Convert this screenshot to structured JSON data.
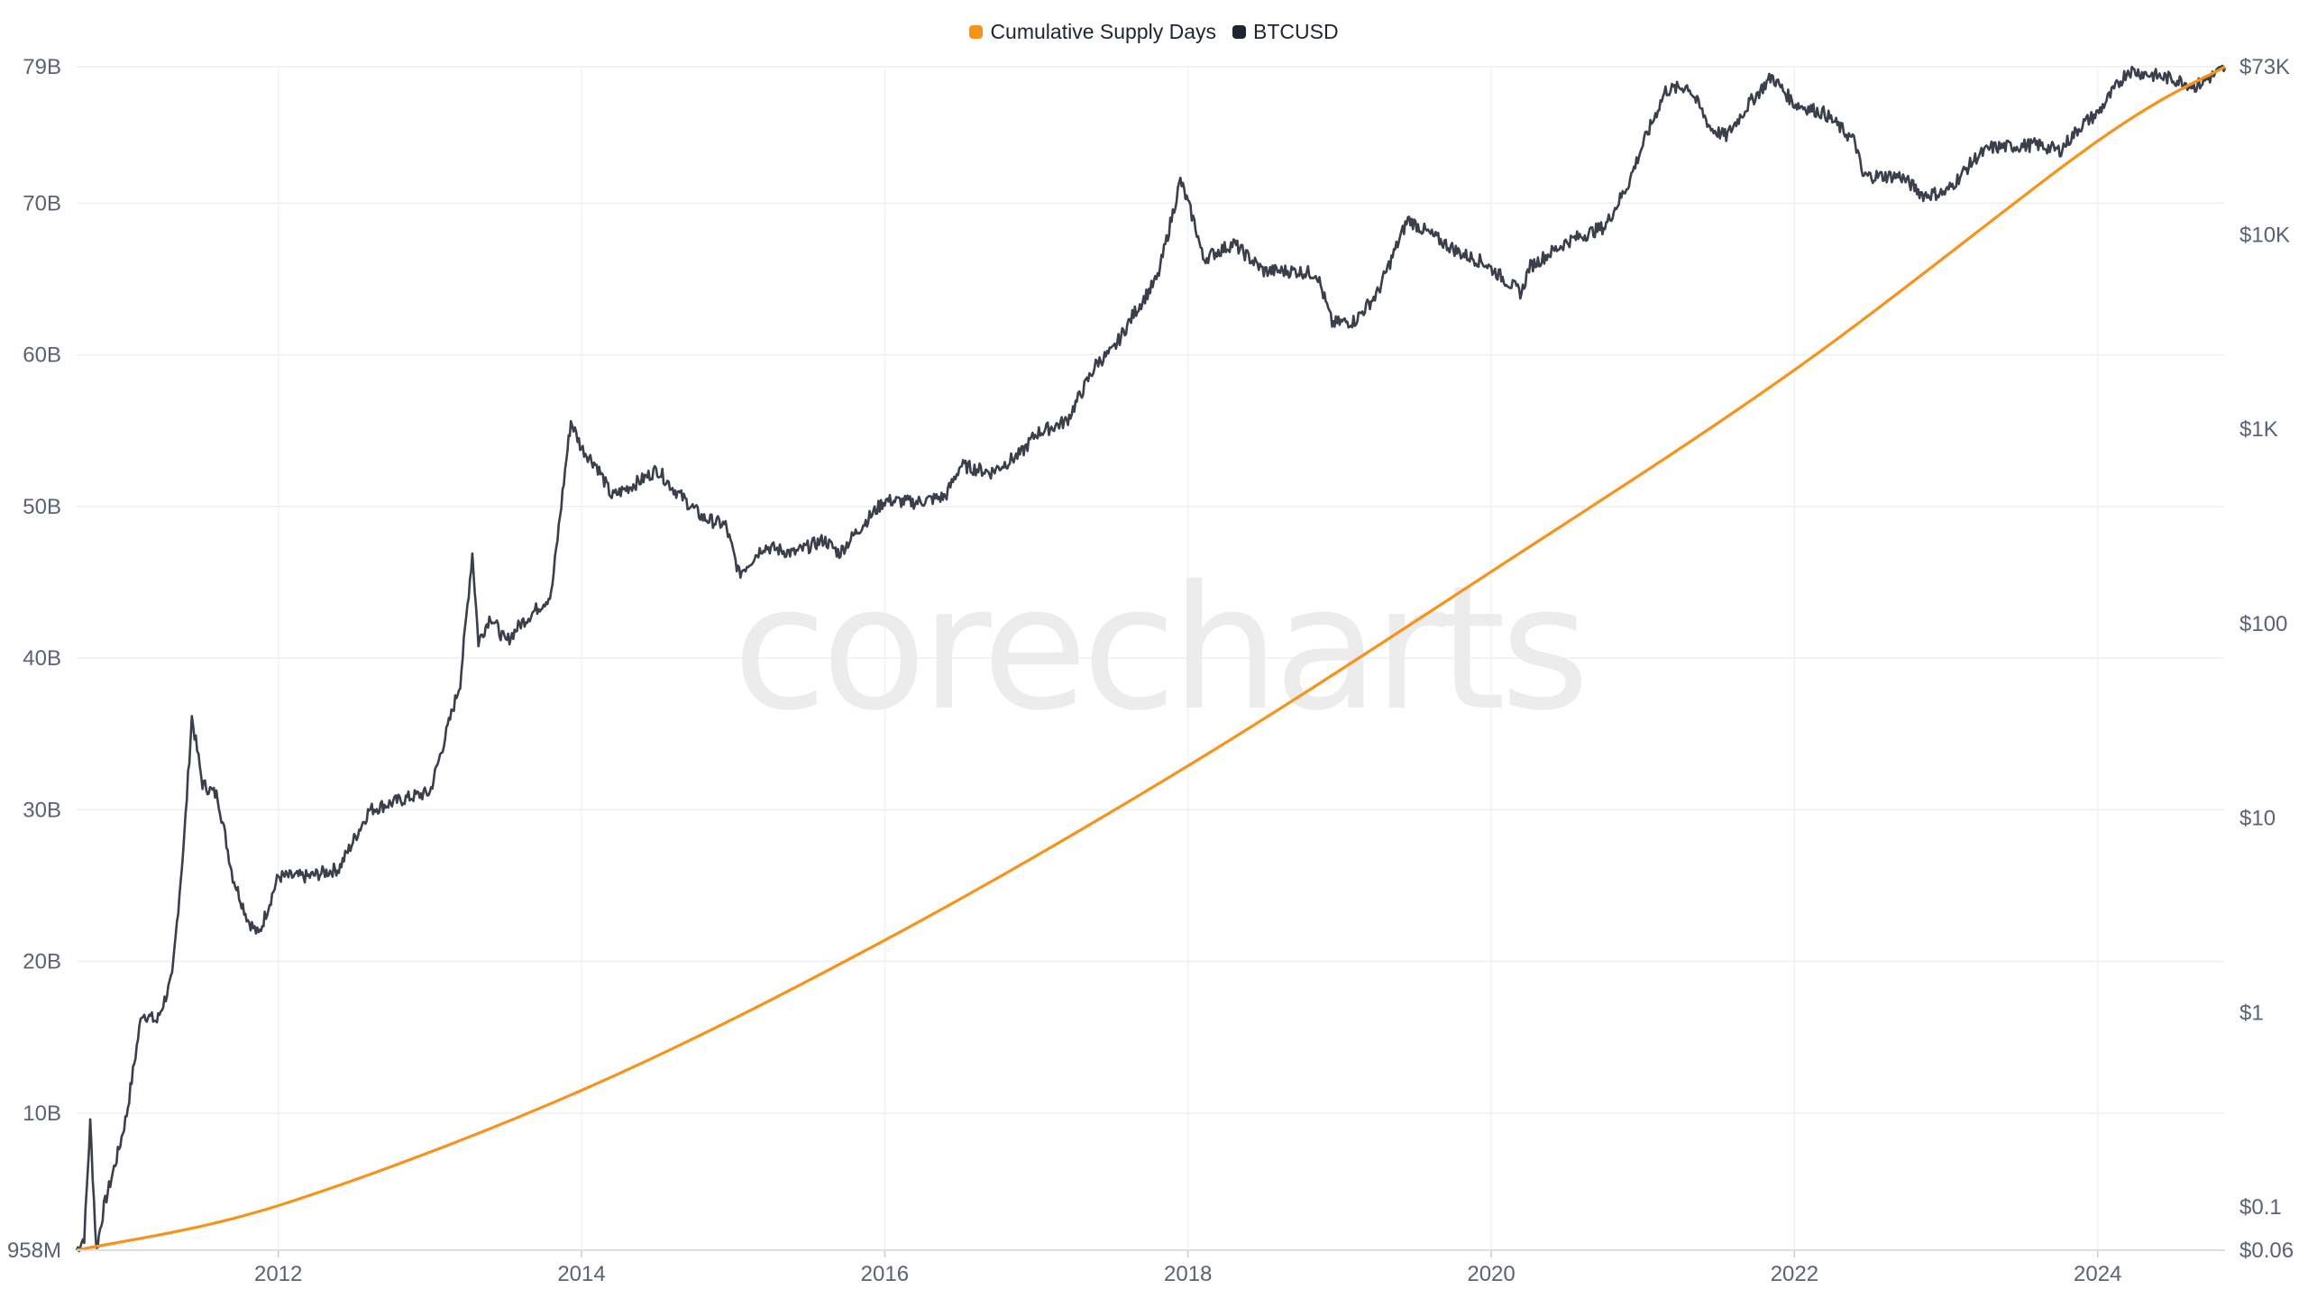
{
  "chart_data": {
    "type": "line",
    "watermark": "corecharts",
    "legend_position": "top-center",
    "grid": true,
    "legend": [
      {
        "name": "Cumulative Supply Days",
        "color": "#f7931a"
      },
      {
        "name": "BTCUSD",
        "color": "#1f2430"
      }
    ],
    "x_axis": {
      "type": "time-years",
      "range": [
        2010.67,
        2024.84
      ],
      "ticks": [
        2012,
        2014,
        2016,
        2018,
        2020,
        2022,
        2024
      ],
      "tick_labels": [
        "2012",
        "2014",
        "2016",
        "2018",
        "2020",
        "2022",
        "2024"
      ]
    },
    "y_left": {
      "scale": "linear",
      "unit": "B",
      "range": [
        0.958,
        79
      ],
      "ticks": [
        0.958,
        10,
        20,
        30,
        40,
        50,
        60,
        70,
        79
      ],
      "tick_labels": [
        "958M",
        "10B",
        "20B",
        "30B",
        "40B",
        "50B",
        "60B",
        "70B",
        "79B"
      ]
    },
    "y_right": {
      "scale": "log",
      "range": [
        0.06,
        73000
      ],
      "ticks": [
        0.06,
        0.1,
        1,
        10,
        100,
        1000,
        10000,
        73000
      ],
      "tick_labels": [
        "$0.06",
        "$0.1",
        "$1",
        "$10",
        "$100",
        "$1K",
        "$10K",
        "$73K"
      ]
    },
    "series": [
      {
        "name": "Cumulative Supply Days",
        "axis": "left",
        "unit": "billions",
        "x": [
          2010.67,
          2012,
          2014,
          2016,
          2018,
          2020,
          2022,
          2024,
          2024.84
        ],
        "y": [
          0.958,
          3.9,
          11.5,
          21.4,
          32.9,
          45.7,
          59.0,
          74.1,
          79.0
        ]
      },
      {
        "name": "BTCUSD",
        "axis": "right",
        "unit": "USD",
        "x": [
          2010.67,
          2010.72,
          2010.76,
          2010.8,
          2010.85,
          2010.95,
          2011.0,
          2011.1,
          2011.2,
          2011.3,
          2011.38,
          2011.43,
          2011.5,
          2011.6,
          2011.7,
          2011.8,
          2011.87,
          2012.0,
          2012.2,
          2012.4,
          2012.6,
          2012.75,
          2012.9,
          2013.0,
          2013.2,
          2013.28,
          2013.32,
          2013.4,
          2013.5,
          2013.6,
          2013.8,
          2013.9,
          2013.93,
          2014.0,
          2014.1,
          2014.2,
          2014.4,
          2014.5,
          2014.6,
          2014.8,
          2014.95,
          2015.04,
          2015.2,
          2015.4,
          2015.6,
          2015.7,
          2015.85,
          2016.0,
          2016.2,
          2016.4,
          2016.5,
          2016.7,
          2016.9,
          2017.0,
          2017.2,
          2017.4,
          2017.5,
          2017.65,
          2017.8,
          2017.95,
          2018.05,
          2018.1,
          2018.3,
          2018.5,
          2018.7,
          2018.85,
          2018.95,
          2019.1,
          2019.25,
          2019.45,
          2019.6,
          2019.8,
          2019.95,
          2020.2,
          2020.25,
          2020.5,
          2020.75,
          2020.9,
          2021.0,
          2021.15,
          2021.3,
          2021.45,
          2021.55,
          2021.7,
          2021.85,
          2022.0,
          2022.2,
          2022.4,
          2022.45,
          2022.7,
          2022.85,
          2023.0,
          2023.2,
          2023.3,
          2023.6,
          2023.75,
          2023.9,
          2024.0,
          2024.2,
          2024.5,
          2024.65,
          2024.84
        ],
        "y": [
          0.06,
          0.07,
          0.27,
          0.06,
          0.1,
          0.2,
          0.3,
          1.0,
          0.9,
          1.5,
          8,
          33,
          15,
          13,
          5,
          3,
          2.5,
          5,
          5,
          5.5,
          11,
          12,
          13,
          13.5,
          50,
          230,
          80,
          110,
          80,
          100,
          140,
          700,
          1100,
          800,
          650,
          450,
          550,
          620,
          500,
          350,
          320,
          180,
          250,
          230,
          270,
          230,
          320,
          430,
          420,
          450,
          650,
          600,
          750,
          950,
          1100,
          2200,
          2500,
          4000,
          6000,
          19000,
          11000,
          7500,
          9000,
          6500,
          6500,
          6300,
          3500,
          3600,
          5000,
          12000,
          10000,
          8000,
          7200,
          5000,
          6800,
          9200,
          11000,
          18000,
          29000,
          55000,
          58000,
          35000,
          32000,
          47000,
          65000,
          47000,
          42000,
          30000,
          20000,
          20000,
          16000,
          16500,
          25000,
          28000,
          29000,
          27000,
          37000,
          42000,
          70000,
          63000,
          58000,
          72000
        ]
      }
    ]
  }
}
